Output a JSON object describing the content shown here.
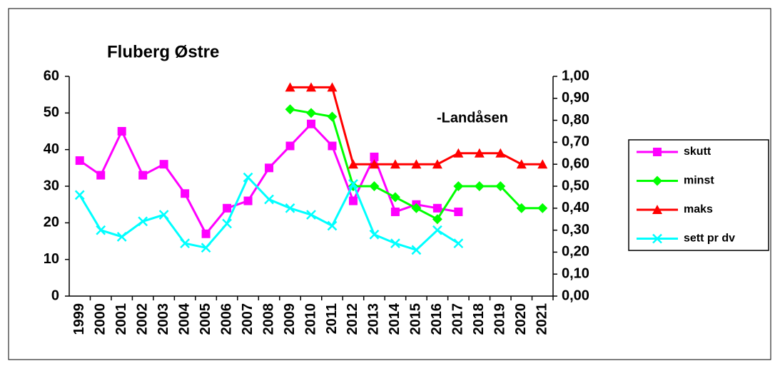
{
  "chart_data": {
    "type": "line",
    "title": "Fluberg Østre",
    "annotation": "-Landåsen",
    "categories": [
      "1999",
      "2000",
      "2001",
      "2002",
      "2003",
      "2004",
      "2005",
      "2006",
      "2007",
      "2008",
      "2009",
      "2010",
      "2011",
      "2012",
      "2013",
      "2014",
      "2015",
      "2016",
      "2017",
      "2018",
      "2019",
      "2020",
      "2021"
    ],
    "series": [
      {
        "name": "skutt",
        "color": "#ff00ff",
        "marker": "square",
        "values": [
          37,
          33,
          45,
          33,
          36,
          28,
          17,
          24,
          26,
          35,
          41,
          47,
          41,
          26,
          38,
          23,
          25,
          24,
          23,
          null,
          null,
          null,
          null
        ]
      },
      {
        "name": "minst",
        "color": "#00ff00",
        "marker": "diamond",
        "values": [
          null,
          null,
          null,
          null,
          null,
          null,
          null,
          null,
          null,
          null,
          51,
          50,
          49,
          30,
          30,
          27,
          24,
          21,
          30,
          30,
          30,
          24,
          24
        ]
      },
      {
        "name": "maks",
        "color": "#ff0000",
        "marker": "triangle",
        "values": [
          null,
          null,
          null,
          null,
          null,
          null,
          null,
          null,
          null,
          null,
          57,
          57,
          57,
          36,
          36,
          36,
          36,
          36,
          39,
          39,
          39,
          36,
          36
        ]
      },
      {
        "name": "sett pr dv",
        "color": "#00ffff",
        "marker": "x",
        "axis": "y2",
        "values": [
          0.46,
          0.3,
          0.27,
          0.34,
          0.37,
          0.24,
          0.22,
          0.33,
          0.54,
          0.44,
          0.4,
          0.37,
          0.32,
          0.51,
          0.28,
          0.24,
          0.21,
          0.3,
          0.24,
          null,
          null,
          null,
          null
        ]
      }
    ],
    "ylim": [
      0,
      60
    ],
    "yticks": [
      0,
      10,
      20,
      30,
      40,
      50,
      60
    ],
    "y2lim": [
      0,
      1
    ],
    "y2ticks": [
      {
        "value": 0,
        "label": "0,00"
      },
      {
        "value": 0.1,
        "label": "0,10"
      },
      {
        "value": 0.2,
        "label": "0,20"
      },
      {
        "value": 0.3,
        "label": "0,30"
      },
      {
        "value": 0.4,
        "label": "0,40"
      },
      {
        "value": 0.5,
        "label": "0,50"
      },
      {
        "value": 0.6,
        "label": "0,60"
      },
      {
        "value": 0.7,
        "label": "0,70"
      },
      {
        "value": 0.8,
        "label": "0,80"
      },
      {
        "value": 0.9,
        "label": "0,90"
      },
      {
        "value": 1,
        "label": "1,00"
      }
    ],
    "grid": false,
    "legend": "right"
  }
}
